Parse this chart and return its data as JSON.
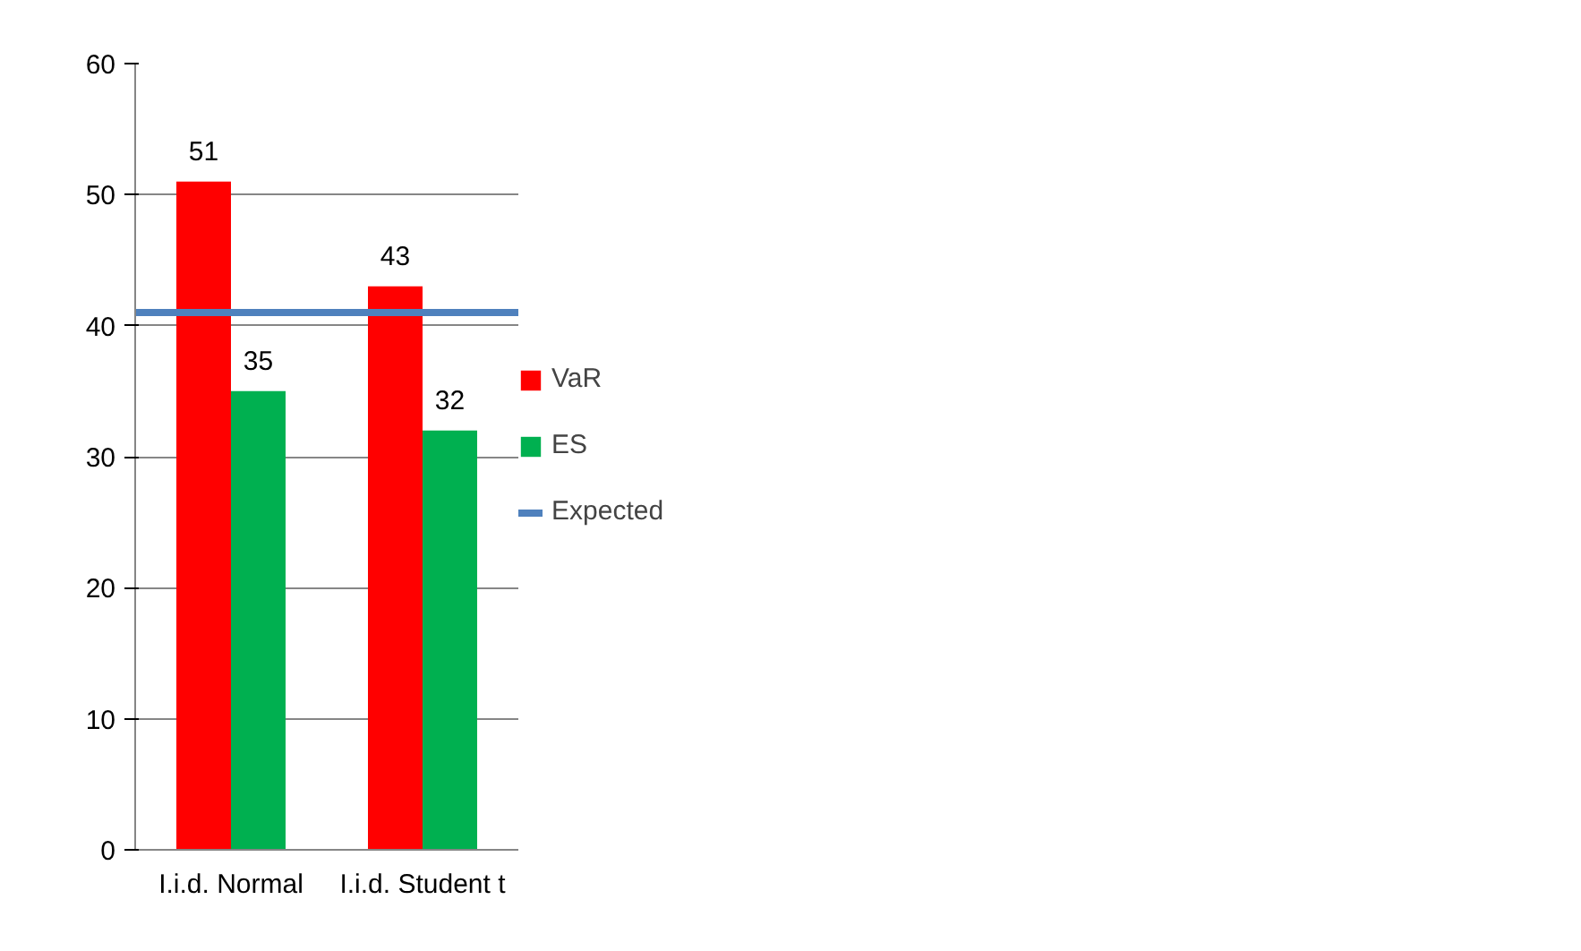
{
  "chart_data": {
    "type": "bar",
    "categories": [
      "I.i.d. Normal",
      "I.i.d. Student t"
    ],
    "series": [
      {
        "name": "VaR",
        "color": "#ff0000",
        "values": [
          51,
          43
        ]
      },
      {
        "name": "ES",
        "color": "#00b050",
        "values": [
          35,
          32
        ]
      }
    ],
    "ref_lines": [
      {
        "axis": "y",
        "value": 41,
        "label": "Expected",
        "color": "#4f81bd"
      }
    ],
    "ylim": [
      0,
      60
    ],
    "yticks": [
      0,
      10,
      20,
      30,
      40,
      50,
      60
    ],
    "grid": "y",
    "legend": "right",
    "data_labels": true
  }
}
